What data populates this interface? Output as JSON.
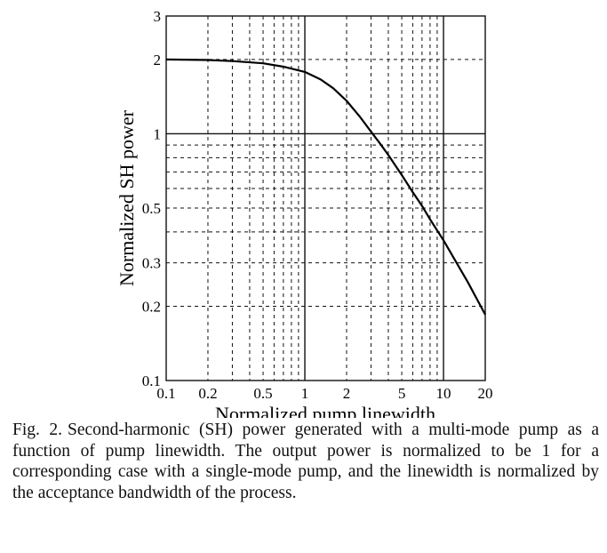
{
  "chart_data": {
    "type": "line",
    "xlabel": "Normalized pump linewidth",
    "ylabel": "Normalized SH power",
    "xscale": "log",
    "yscale": "log",
    "xlim": [
      0.1,
      20
    ],
    "ylim": [
      0.1,
      3
    ],
    "grid": "dashed minor log grid with solid lines at x=1, x=10 and y=1",
    "xticks": [
      "0.1",
      "0.2",
      "0.5",
      "1",
      "2",
      "5",
      "10",
      "20"
    ],
    "yticks": [
      "0.1",
      "0.2",
      "0.3",
      "0.5",
      "1",
      "2",
      "3"
    ],
    "series": [
      {
        "color": "#000000",
        "x": [
          0.1,
          0.2,
          0.3,
          0.5,
          0.7,
          1.0,
          1.3,
          1.6,
          2.0,
          2.5,
          3.0,
          3.5,
          4.0,
          5.0,
          6.0,
          7.0,
          8.0,
          10.0,
          12.0,
          15.0,
          20.0
        ],
        "y": [
          2.0,
          1.99,
          1.97,
          1.93,
          1.87,
          1.78,
          1.66,
          1.53,
          1.36,
          1.17,
          1.02,
          0.91,
          0.82,
          0.68,
          0.58,
          0.51,
          0.45,
          0.37,
          0.31,
          0.25,
          0.185
        ]
      }
    ]
  },
  "caption": {
    "label": "Fig. 2.",
    "text": "Second-harmonic (SH) power generated with a multi-mode pump as a function of pump linewidth. The output power is normalized to be 1 for a corresponding case with a single-mode pump, and the linewidth is normalized by the acceptance bandwidth of the process."
  }
}
